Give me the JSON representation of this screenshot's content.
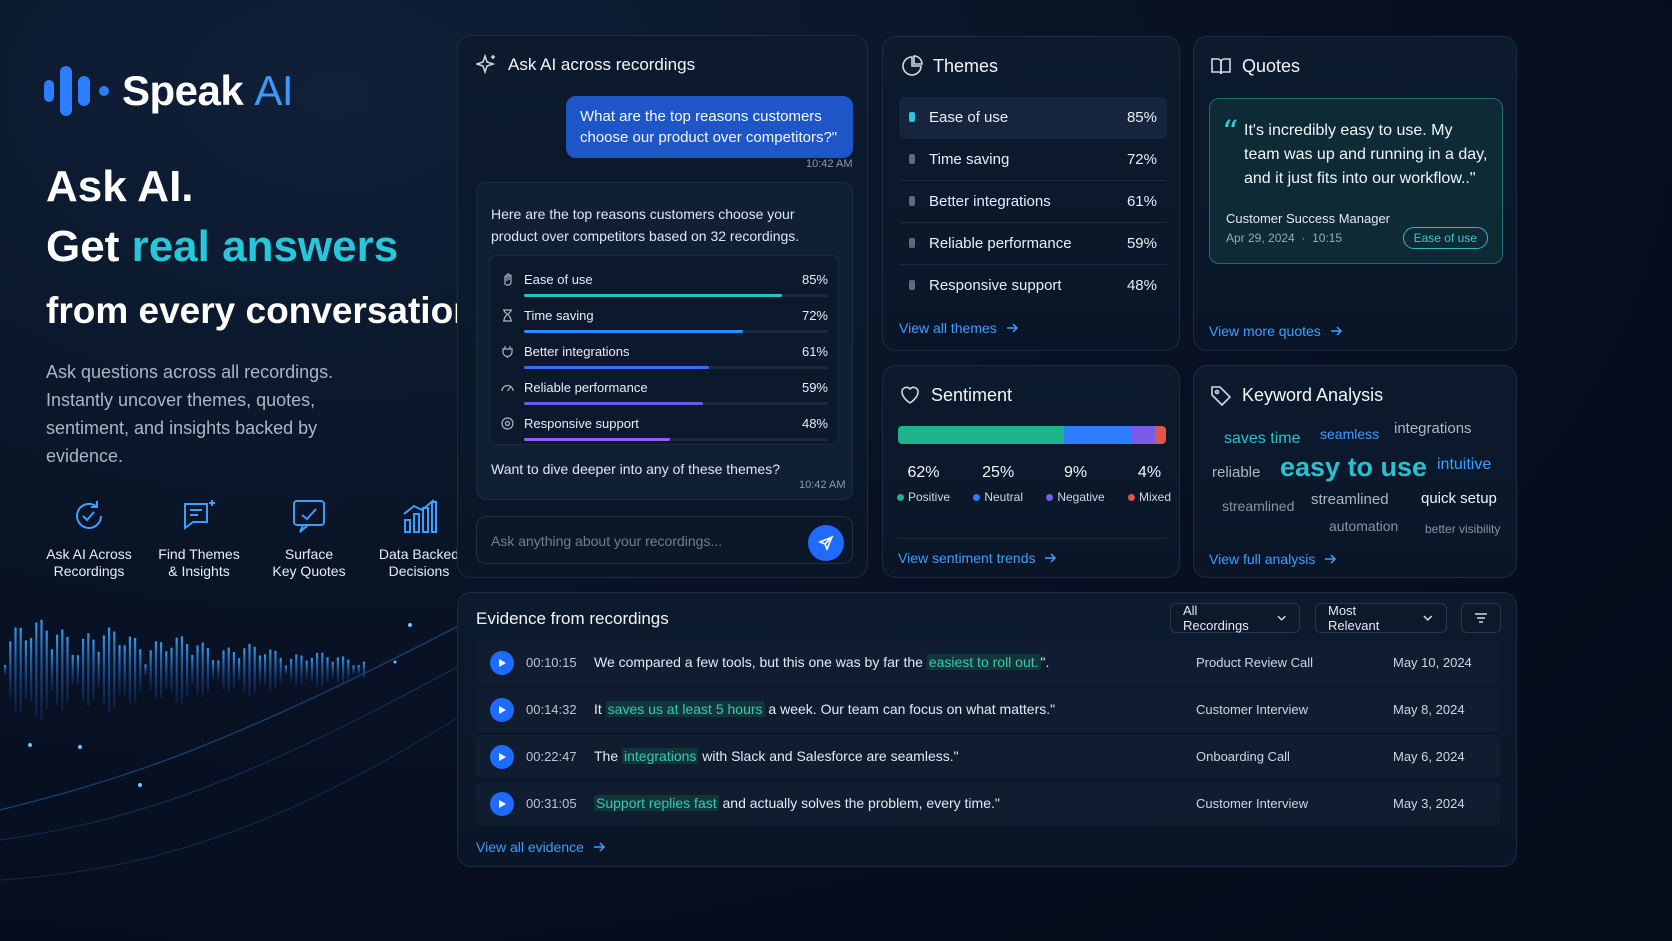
{
  "brand": {
    "name": "Speak",
    "suffix": "AI"
  },
  "hero": {
    "line1": "Ask AI.",
    "line2_prefix": "Get ",
    "line2_accent": "real answers",
    "line3": "from every conversation.",
    "description": "Ask questions across all recordings. Instantly uncover themes, quotes, sentiment, and insights backed by evidence."
  },
  "features": [
    {
      "icon": "ai-refresh-icon",
      "label_1": "Ask AI Across",
      "label_2": "Recordings"
    },
    {
      "icon": "sparkle-chat-icon",
      "label_1": "Find Themes",
      "label_2": "& Insights"
    },
    {
      "icon": "quote-chat-icon",
      "label_1": "Surface",
      "label_2": "Key Quotes"
    },
    {
      "icon": "bar-chart-icon",
      "label_1": "Data Backed",
      "label_2": "Decisions"
    }
  ],
  "ask": {
    "title": "Ask AI across recordings",
    "question": "What are the top reasons customers choose our product over competitors?\"",
    "question_time": "10:42 AM",
    "answer_intro": "Here are the top reasons customers choose your product over competitors based on 32 recordings.",
    "themes": [
      {
        "name": "Ease of use",
        "pct": "85%",
        "value": 0.85,
        "color": "#22c3cf",
        "icon": "hand-icon"
      },
      {
        "name": "Time saving",
        "pct": "72%",
        "value": 0.72,
        "color": "#2d8cff",
        "icon": "hourglass-icon"
      },
      {
        "name": "Better integrations",
        "pct": "61%",
        "value": 0.61,
        "color": "#3a6bff",
        "icon": "plug-icon"
      },
      {
        "name": "Reliable performance",
        "pct": "59%",
        "value": 0.59,
        "color": "#6a5cf0",
        "icon": "gauge-icon"
      },
      {
        "name": "Responsive support",
        "pct": "48%",
        "value": 0.48,
        "color": "#9a5cf0",
        "icon": "support-icon"
      }
    ],
    "followup": "Want to dive deeper into any of these themes?",
    "followup_time": "10:42 AM",
    "placeholder": "Ask anything about your recordings..."
  },
  "themes_card": {
    "title": "Themes",
    "items": [
      {
        "name": "Ease of use",
        "pct": "85%"
      },
      {
        "name": "Time saving",
        "pct": "72%"
      },
      {
        "name": "Better integrations",
        "pct": "61%"
      },
      {
        "name": "Reliable performance",
        "pct": "59%"
      },
      {
        "name": "Responsive support",
        "pct": "48%"
      }
    ],
    "link": "View all themes"
  },
  "quotes": {
    "title": "Quotes",
    "text": "It's incredibly easy to use. My team was up and running in a day, and it just fits into our workflow..\"",
    "role": "Customer Success Manager",
    "date": "Apr 29, 2024",
    "sep": "·",
    "time": "10:15",
    "tag": "Ease of use",
    "link": "View more quotes"
  },
  "sentiment": {
    "title": "Sentiment",
    "segments": [
      {
        "label": "Positive",
        "value": "62%",
        "fraction": 0.62,
        "color": "#1fb38c"
      },
      {
        "label": "Neutral",
        "value": "25%",
        "fraction": 0.25,
        "color": "#2d7dff"
      },
      {
        "label": "Negative",
        "value": "9%",
        "fraction": 0.09,
        "color": "#7b5ce6"
      },
      {
        "label": "Mixed",
        "value": "4%",
        "fraction": 0.04,
        "color": "#e0544f"
      }
    ],
    "link": "View sentiment trends"
  },
  "keywords": {
    "title": "Keyword Analysis",
    "words": [
      {
        "text": "saves time"
      },
      {
        "text": "seamless"
      },
      {
        "text": "integrations"
      },
      {
        "text": "reliable"
      },
      {
        "text": "easy to use"
      },
      {
        "text": "intuitive"
      },
      {
        "text": "streamlined"
      },
      {
        "text": "streamlined"
      },
      {
        "text": "quick setup"
      },
      {
        "text": "automation"
      },
      {
        "text": "better visibility"
      }
    ],
    "link": "View full analysis"
  },
  "evidence": {
    "title": "Evidence from recordings",
    "filter_recordings": "All Recordings",
    "filter_sort": "Most Relevant",
    "rows": [
      {
        "time": "00:10:15",
        "pre": "We compared a few tools, but this one was by far the ",
        "hl": "easiest to roll out.",
        "post": "\".",
        "source": "Product Review Call",
        "date": "May 10, 2024"
      },
      {
        "time": "00:14:32",
        "pre": "It ",
        "hl": "saves us at least 5 hours",
        "post": " a week. Our team can focus on what matters.\"",
        "source": "Customer Interview",
        "date": "May 8, 2024"
      },
      {
        "time": "00:22:47",
        "pre": "The ",
        "hl": "integrations",
        "post": " with Slack and Salesforce are seamless.\"",
        "source": "Onboarding Call",
        "date": "May 6, 2024"
      },
      {
        "time": "00:31:05",
        "pre": "",
        "hl": "Support replies fast",
        "post": " and actually solves the problem, every time.\"",
        "source": "Customer Interview",
        "date": "May 3, 2024"
      }
    ],
    "link": "View all evidence"
  }
}
